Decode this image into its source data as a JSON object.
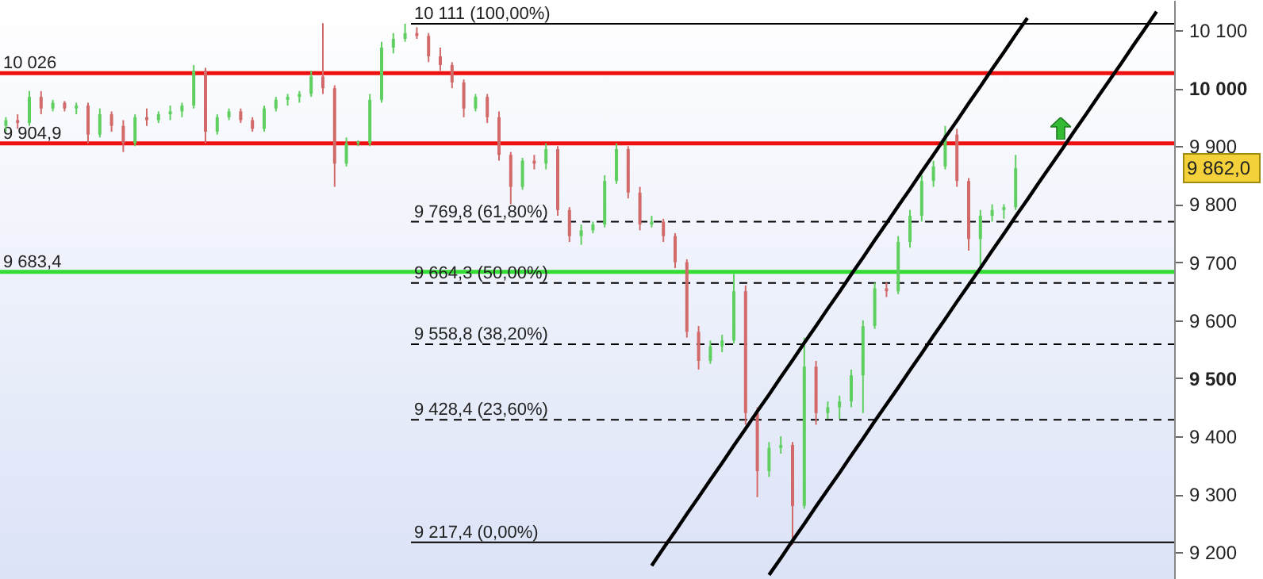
{
  "chart_data": {
    "type": "candlestick",
    "categories": [
      null,
      null,
      null,
      null,
      null,
      null,
      null,
      null,
      null,
      null,
      null,
      null,
      null,
      null,
      null,
      null,
      null,
      null,
      null,
      null,
      null,
      null,
      null,
      null,
      null,
      null,
      null,
      null,
      null,
      null,
      null,
      null,
      null,
      null,
      null,
      null,
      null,
      null,
      null,
      null,
      null,
      null,
      null,
      null,
      null,
      null,
      null,
      null,
      null,
      null,
      null,
      null,
      null,
      null,
      null,
      null,
      null,
      null,
      null,
      null,
      null,
      null,
      null,
      null,
      null,
      null,
      null,
      null,
      null,
      null,
      null,
      null,
      null,
      null,
      null,
      null,
      null,
      null,
      null,
      null,
      null,
      null,
      null,
      null,
      null,
      null,
      null,
      null,
      null,
      null,
      null,
      null,
      null,
      null,
      null,
      null,
      null,
      null,
      null,
      null
    ],
    "ohlc": [
      [
        9935,
        9950,
        9925,
        9945
      ],
      [
        9945,
        9955,
        9930,
        9940
      ],
      [
        9940,
        9995,
        9935,
        9985
      ],
      [
        9985,
        9995,
        9955,
        9965
      ],
      [
        9965,
        9980,
        9960,
        9975
      ],
      [
        9975,
        9978,
        9960,
        9965
      ],
      [
        9965,
        9975,
        9955,
        9970
      ],
      [
        9970,
        9975,
        9905,
        9920
      ],
      [
        9920,
        9965,
        9915,
        9955
      ],
      [
        9955,
        9960,
        9925,
        9935
      ],
      [
        9935,
        9945,
        9890,
        9905
      ],
      [
        9905,
        9955,
        9900,
        9950
      ],
      [
        9950,
        9965,
        9935,
        9945
      ],
      [
        9945,
        9960,
        9940,
        9955
      ],
      [
        9955,
        9970,
        9945,
        9960
      ],
      [
        9960,
        9975,
        9950,
        9970
      ],
      [
        9970,
        10040,
        9965,
        10030
      ],
      [
        10030,
        10035,
        9905,
        9925
      ],
      [
        9925,
        9955,
        9920,
        9950
      ],
      [
        9950,
        9965,
        9945,
        9960
      ],
      [
        9960,
        9965,
        9940,
        9945
      ],
      [
        9945,
        9950,
        9925,
        9930
      ],
      [
        9930,
        9970,
        9925,
        9965
      ],
      [
        9965,
        9985,
        9960,
        9980
      ],
      [
        9980,
        9990,
        9970,
        9985
      ],
      [
        9985,
        9995,
        9975,
        9990
      ],
      [
        9990,
        10030,
        9985,
        10020
      ],
      [
        10020,
        10112,
        9990,
        10000
      ],
      [
        10000,
        10005,
        9830,
        9870
      ],
      [
        9870,
        9915,
        9865,
        9905
      ],
      [
        9905,
        9910,
        9900,
        9908
      ],
      [
        9905,
        9990,
        9900,
        9980
      ],
      [
        9980,
        10080,
        9975,
        10070
      ],
      [
        10070,
        10095,
        10060,
        10085
      ],
      [
        10085,
        10111,
        10080,
        10095
      ],
      [
        10095,
        10105,
        10085,
        10090
      ],
      [
        10090,
        10095,
        10045,
        10055
      ],
      [
        10055,
        10070,
        10030,
        10040
      ],
      [
        10040,
        10045,
        10000,
        10010
      ],
      [
        10010,
        10015,
        9950,
        9965
      ],
      [
        9965,
        9990,
        9960,
        9985
      ],
      [
        9985,
        9990,
        9940,
        9950
      ],
      [
        9950,
        9960,
        9875,
        9885
      ],
      [
        9885,
        9890,
        9800,
        9830
      ],
      [
        9830,
        9880,
        9825,
        9875
      ],
      [
        9875,
        9885,
        9860,
        9870
      ],
      [
        9870,
        9905,
        9860,
        9895
      ],
      [
        9895,
        9900,
        9780,
        9790
      ],
      [
        9790,
        9795,
        9735,
        9745
      ],
      [
        9745,
        9765,
        9730,
        9755
      ],
      [
        9755,
        9770,
        9750,
        9765
      ],
      [
        9765,
        9850,
        9760,
        9840
      ],
      [
        9840,
        9905,
        9835,
        9895
      ],
      [
        9895,
        9900,
        9810,
        9820
      ],
      [
        9820,
        9830,
        9755,
        9765
      ],
      [
        9765,
        9780,
        9760,
        9770
      ],
      [
        9770,
        9775,
        9735,
        9745
      ],
      [
        9745,
        9750,
        9690,
        9700
      ],
      [
        9700,
        9705,
        9570,
        9580
      ],
      [
        9580,
        9590,
        9515,
        9530
      ],
      [
        9530,
        9565,
        9525,
        9555
      ],
      [
        9555,
        9575,
        9545,
        9565
      ],
      [
        9565,
        9680,
        9560,
        9650
      ],
      [
        9650,
        9660,
        9420,
        9440
      ],
      [
        9440,
        9450,
        9295,
        9340
      ],
      [
        9340,
        9390,
        9330,
        9380
      ],
      [
        9380,
        9400,
        9370,
        9385
      ],
      [
        9385,
        9390,
        9213,
        9280
      ],
      [
        9280,
        9570,
        9275,
        9520
      ],
      [
        9520,
        9530,
        9420,
        9440
      ],
      [
        9440,
        9460,
        9430,
        9450
      ],
      [
        9450,
        9470,
        9430,
        9460
      ],
      [
        9460,
        9515,
        9450,
        9505
      ],
      [
        9505,
        9600,
        9440,
        9590
      ],
      [
        9590,
        9665,
        9585,
        9655
      ],
      [
        9655,
        9665,
        9640,
        9650
      ],
      [
        9650,
        9745,
        9645,
        9735
      ],
      [
        9735,
        9790,
        9725,
        9780
      ],
      [
        9780,
        9850,
        9770,
        9840
      ],
      [
        9840,
        9875,
        9830,
        9865
      ],
      [
        9865,
        9935,
        9860,
        9920
      ],
      [
        9920,
        9930,
        9830,
        9840
      ],
      [
        9840,
        9845,
        9720,
        9740
      ],
      [
        9740,
        9790,
        9686,
        9780
      ],
      [
        9780,
        9800,
        9770,
        9790
      ],
      [
        9790,
        9800,
        9775,
        9795
      ],
      [
        9795,
        9885,
        9790,
        9862
      ],
      null,
      null,
      null,
      null,
      null,
      null,
      null,
      null,
      null,
      null,
      null,
      null,
      null
    ],
    "series": [
      {
        "type": "line",
        "color": "#000000",
        "values": [
          null,
          null,
          null,
          null,
          null,
          null,
          null,
          null,
          null,
          null,
          null,
          null,
          null,
          null,
          null,
          null,
          null,
          null,
          null,
          null,
          null,
          null,
          null,
          null,
          null,
          null,
          null,
          null,
          null,
          null,
          null,
          null,
          null,
          null,
          null,
          null,
          null,
          null,
          null,
          null,
          null,
          null,
          null,
          null,
          null,
          null,
          null,
          null,
          null,
          null,
          null,
          null,
          null,
          null,
          null,
          9177,
          9207,
          9236,
          9266,
          9295,
          9325,
          9354,
          9384,
          9413,
          9443,
          9472,
          9502,
          9531,
          9561,
          9590,
          9620,
          9649,
          9679,
          9708,
          9738,
          9767,
          9797,
          9826,
          9856,
          9885,
          9915,
          9944,
          9974,
          10003,
          10033,
          10062,
          10092,
          10121,
          null,
          null,
          null,
          null,
          null,
          null,
          null,
          null,
          null,
          null,
          null,
          null
        ]
      },
      {
        "type": "line",
        "color": "#000000",
        "values": [
          null,
          null,
          null,
          null,
          null,
          null,
          null,
          null,
          null,
          null,
          null,
          null,
          null,
          null,
          null,
          null,
          null,
          null,
          null,
          null,
          null,
          null,
          null,
          null,
          null,
          null,
          null,
          null,
          null,
          null,
          null,
          null,
          null,
          null,
          null,
          null,
          null,
          null,
          null,
          null,
          null,
          null,
          null,
          null,
          null,
          null,
          null,
          null,
          null,
          null,
          null,
          null,
          null,
          null,
          null,
          null,
          null,
          null,
          null,
          null,
          null,
          null,
          null,
          null,
          null,
          9161,
          9190,
          9220,
          9249,
          9279,
          9308,
          9337,
          9367,
          9396,
          9426,
          9455,
          9484,
          9514,
          9543,
          9573,
          9602,
          9632,
          9661,
          9690,
          9720,
          9749,
          9779,
          9808,
          9838,
          9867,
          9896,
          9926,
          9955,
          9985,
          10014,
          10043,
          10073,
          10102,
          10132,
          null
        ]
      }
    ],
    "ylim": [
      9154,
      10152
    ],
    "yticks": [
      {
        "value": 9200,
        "label": "9 200"
      },
      {
        "value": 9300,
        "label": "9 300"
      },
      {
        "value": 9400,
        "label": "9 400"
      },
      {
        "value": 9500,
        "label": "9 500"
      },
      {
        "value": 9600,
        "label": "9 600"
      },
      {
        "value": 9700,
        "label": "9 700"
      },
      {
        "value": 9800,
        "label": "9 800"
      },
      {
        "value": 9900,
        "label": "9 900"
      },
      {
        "value": 10000,
        "label": "10 000"
      },
      {
        "value": 10100,
        "label": "10 100"
      }
    ],
    "ref_lines": [
      {
        "axis": "y",
        "value": 10026,
        "label": "10 026",
        "color": "#ee1111",
        "line_style": "solid"
      },
      {
        "axis": "y",
        "value": 9904.9,
        "label": "9 904,9",
        "color": "#ee1111",
        "line_style": "solid"
      },
      {
        "axis": "y",
        "value": 9683.4,
        "label": "9 683,4",
        "color": "#33dd33",
        "line_style": "solid"
      },
      {
        "axis": "y",
        "value": 10111,
        "label": "10 111 (100,00%)",
        "color": "#000000",
        "line_style": "solid"
      },
      {
        "axis": "y",
        "value": 9769.8,
        "label": "9 769,8 (61,80%)",
        "color": "#000000",
        "line_style": "dashed"
      },
      {
        "axis": "y",
        "value": 9664.3,
        "label": "9 664,3 (50,00%)",
        "color": "#000000",
        "line_style": "dashed"
      },
      {
        "axis": "y",
        "value": 9558.8,
        "label": "9 558,8 (38,20%)",
        "color": "#000000",
        "line_style": "dashed"
      },
      {
        "axis": "y",
        "value": 9428.4,
        "label": "9 428,4 (23,60%)",
        "color": "#000000",
        "line_style": "dashed"
      },
      {
        "axis": "y",
        "value": 9217.4,
        "label": "9 217,4 (0,00%)",
        "color": "#000000",
        "line_style": "solid"
      }
    ],
    "annotations": [
      "9 862,0"
    ],
    "grid": false
  }
}
